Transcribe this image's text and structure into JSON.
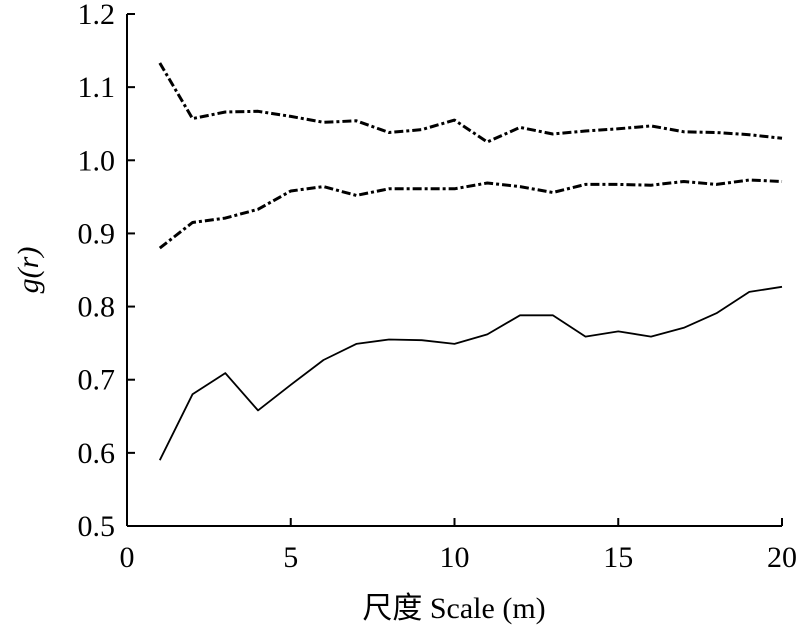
{
  "chart_data": {
    "type": "line",
    "xlabel": "尺度 Scale (m)",
    "ylabel": "g(r)",
    "xlim": [
      0,
      20
    ],
    "ylim": [
      0.5,
      1.2
    ],
    "x_ticks": [
      0,
      5,
      10,
      15,
      20
    ],
    "x_tick_labels": [
      "0",
      "5",
      "10",
      "15",
      "20"
    ],
    "y_ticks": [
      0.5,
      0.6,
      0.7,
      0.8,
      0.9,
      1.0,
      1.1,
      1.2
    ],
    "y_tick_labels": [
      "0.5",
      "0.6",
      "0.7",
      "0.8",
      "0.9",
      "1.0",
      "1.1",
      "1.2"
    ],
    "grid": false,
    "x": [
      1,
      2,
      3,
      4,
      5,
      6,
      7,
      8,
      9,
      10,
      11,
      12,
      13,
      14,
      15,
      16,
      17,
      18,
      19,
      20
    ],
    "series": [
      {
        "style": "dash-dot",
        "values": [
          1.133,
          1.057,
          1.066,
          1.067,
          1.06,
          1.052,
          1.054,
          1.038,
          1.042,
          1.055,
          1.025,
          1.045,
          1.036,
          1.04,
          1.043,
          1.047,
          1.039,
          1.038,
          1.035,
          1.03
        ]
      },
      {
        "style": "dash-dot",
        "values": [
          0.88,
          0.915,
          0.921,
          0.933,
          0.958,
          0.964,
          0.952,
          0.961,
          0.961,
          0.961,
          0.969,
          0.964,
          0.956,
          0.967,
          0.967,
          0.966,
          0.971,
          0.967,
          0.973,
          0.971
        ]
      },
      {
        "style": "solid",
        "values": [
          0.59,
          0.68,
          0.709,
          0.658,
          0.693,
          0.727,
          0.749,
          0.755,
          0.754,
          0.749,
          0.762,
          0.788,
          0.788,
          0.759,
          0.766,
          0.759,
          0.771,
          0.791,
          0.82,
          0.827
        ]
      }
    ]
  }
}
